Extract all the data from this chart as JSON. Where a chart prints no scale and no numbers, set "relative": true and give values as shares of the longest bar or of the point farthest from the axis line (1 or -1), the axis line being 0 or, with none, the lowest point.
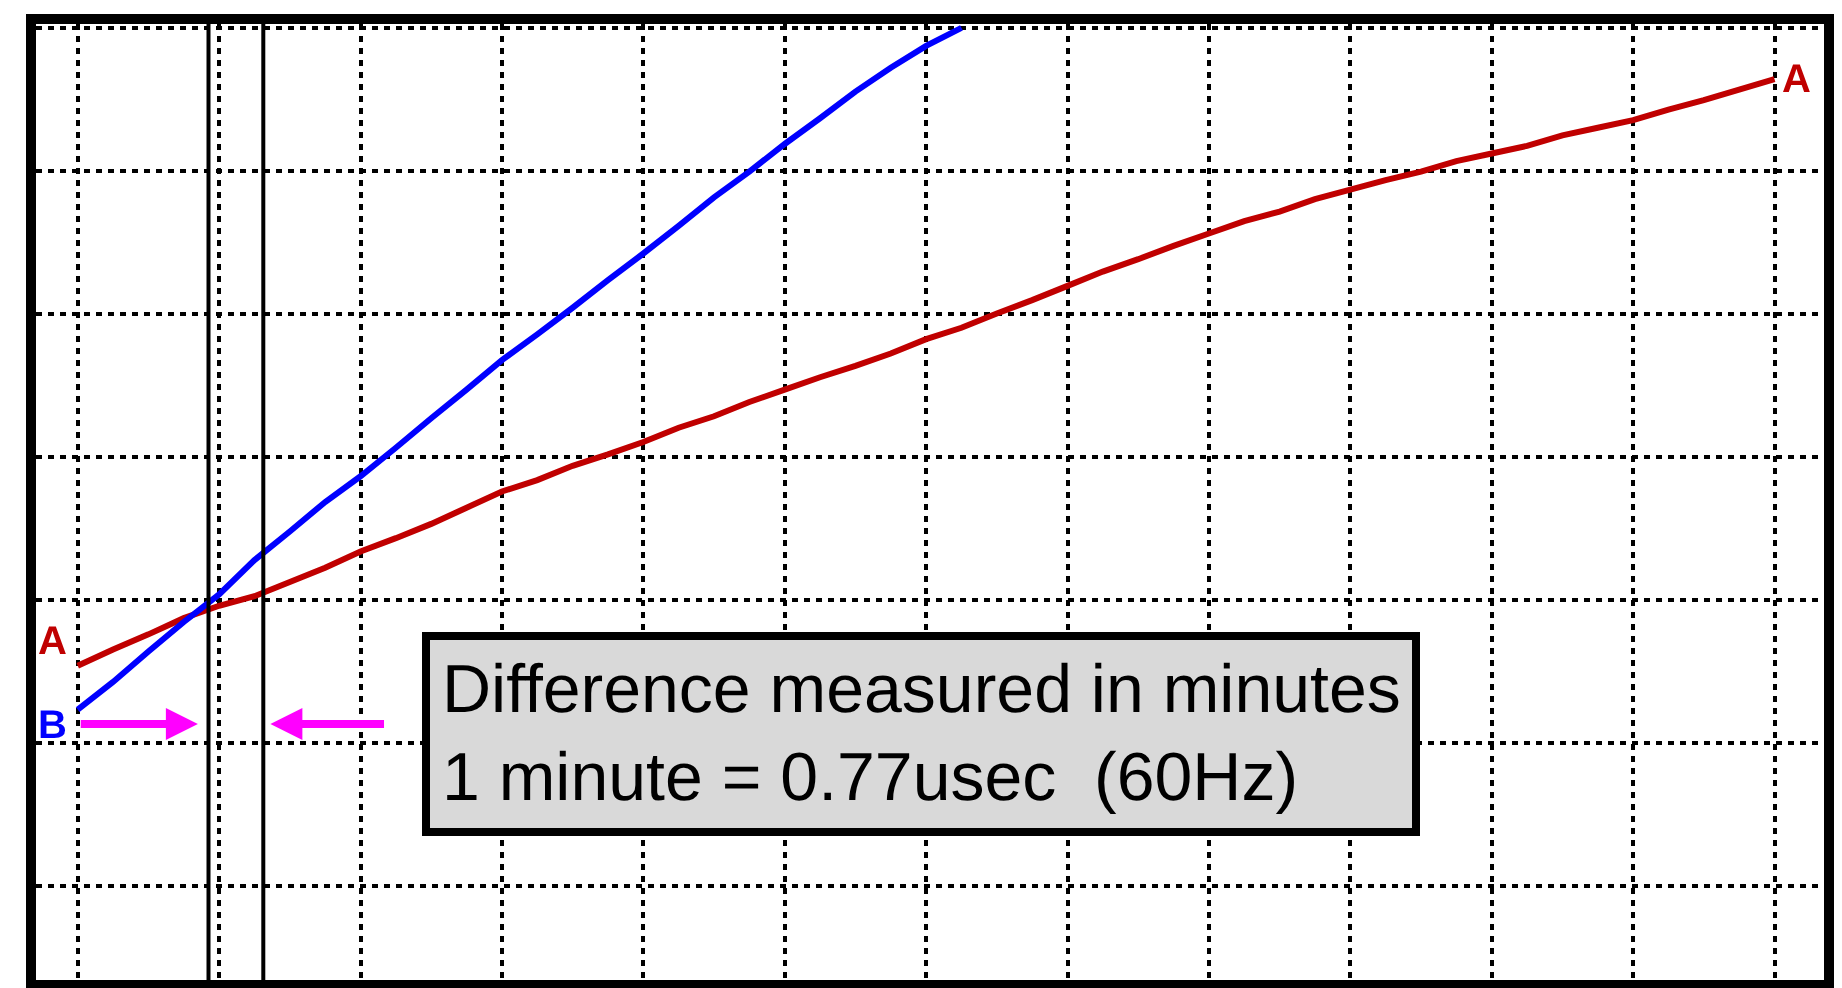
{
  "chart_data": {
    "type": "line",
    "relative": true,
    "grid": true,
    "line_style": "solid",
    "marker": "none",
    "categories": [
      null,
      null,
      null,
      null,
      null,
      null,
      null,
      null,
      null,
      null,
      null,
      null,
      null,
      null,
      null,
      null,
      null,
      null,
      null,
      null,
      null,
      null,
      null,
      null,
      null,
      null,
      null,
      null,
      null,
      null,
      null,
      null,
      null,
      null,
      null,
      null,
      null,
      null,
      null,
      null,
      null,
      null,
      null,
      null,
      null,
      null,
      null,
      null,
      null
    ],
    "series": [
      {
        "name": "A",
        "color": "#c00000",
        "values": [
          0.33,
          0.347,
          0.363,
          0.38,
          0.393,
          0.403,
          0.418,
          0.433,
          0.45,
          0.464,
          0.479,
          0.496,
          0.513,
          0.525,
          0.54,
          0.552,
          0.565,
          0.58,
          0.592,
          0.607,
          0.62,
          0.633,
          0.645,
          0.658,
          0.673,
          0.685,
          0.7,
          0.714,
          0.729,
          0.744,
          0.757,
          0.771,
          0.784,
          0.797,
          0.807,
          0.82,
          0.83,
          0.84,
          0.849,
          0.86,
          0.868,
          0.876,
          0.887,
          0.895,
          0.903,
          0.914,
          0.924,
          0.935,
          0.946
        ]
      },
      {
        "name": "B",
        "color": "#0000ff",
        "values": [
          0.284,
          0.313,
          0.345,
          0.376,
          0.405,
          0.441,
          0.471,
          0.502,
          0.529,
          0.559,
          0.59,
          0.62,
          0.651,
          0.678,
          0.706,
          0.735,
          0.763,
          0.792,
          0.822,
          0.849,
          0.878,
          0.905,
          0.933,
          0.958,
          0.981,
          1.0,
          null,
          null,
          null,
          null,
          null,
          null,
          null,
          null,
          null,
          null,
          null,
          null,
          null,
          null,
          null,
          null,
          null,
          null,
          null,
          null,
          null,
          null,
          null
        ]
      }
    ],
    "annotations": [
      "Difference measured in minutes",
      "1 minute = 0.77usec  (60Hz)"
    ]
  }
}
